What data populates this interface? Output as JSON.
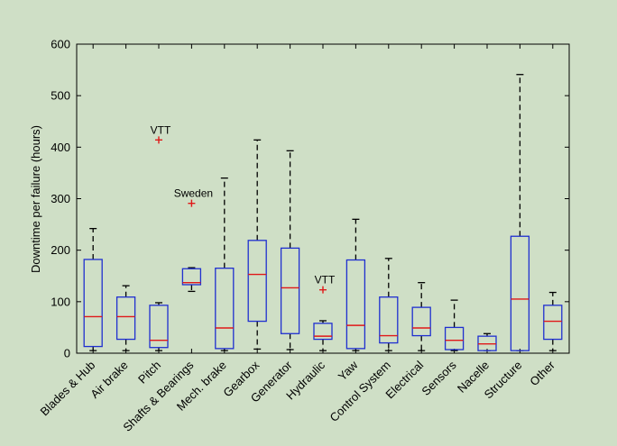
{
  "chart_data": {
    "type": "box",
    "title": "",
    "xlabel": "",
    "ylabel": "Downtime per failure (hours)",
    "ylim": [
      0,
      600
    ],
    "yticks": [
      0,
      100,
      200,
      300,
      400,
      500,
      600
    ],
    "grid": false,
    "categories": [
      "Blades & Hub",
      "Air brake",
      "Pitch",
      "Shafts & Bearings",
      "Mech. brake",
      "Gearbox",
      "Generator",
      "Hydraulic",
      "Yaw",
      "Control System",
      "Electrical",
      "Sensors",
      "Nacelle",
      "Structure",
      "Other"
    ],
    "boxes": [
      {
        "category": "Blades & Hub",
        "min": 5,
        "q1": 13,
        "median": 71,
        "q3": 182,
        "max": 242
      },
      {
        "category": "Air brake",
        "min": 5,
        "q1": 27,
        "median": 71,
        "q3": 109,
        "max": 131
      },
      {
        "category": "Pitch",
        "min": 5,
        "q1": 11,
        "median": 25,
        "q3": 93,
        "max": 98
      },
      {
        "category": "Shafts & Bearings",
        "min": 120,
        "q1": 133,
        "median": 137,
        "q3": 164,
        "max": 166
      },
      {
        "category": "Mech. brake",
        "min": 5,
        "q1": 9,
        "median": 49,
        "q3": 165,
        "max": 340
      },
      {
        "category": "Gearbox",
        "min": 8,
        "q1": 62,
        "median": 153,
        "q3": 219,
        "max": 414
      },
      {
        "category": "Generator",
        "min": 7,
        "q1": 38,
        "median": 127,
        "q3": 204,
        "max": 393
      },
      {
        "category": "Hydraulic",
        "min": 5,
        "q1": 27,
        "median": 33,
        "q3": 58,
        "max": 63
      },
      {
        "category": "Yaw",
        "min": 5,
        "q1": 9,
        "median": 54,
        "q3": 181,
        "max": 260
      },
      {
        "category": "Control System",
        "min": 5,
        "q1": 20,
        "median": 34,
        "q3": 109,
        "max": 184
      },
      {
        "category": "Electrical",
        "min": 5,
        "q1": 34,
        "median": 49,
        "q3": 89,
        "max": 137
      },
      {
        "category": "Sensors",
        "min": 5,
        "q1": 7,
        "median": 25,
        "q3": 50,
        "max": 103
      },
      {
        "category": "Nacelle",
        "min": 5,
        "q1": 5,
        "median": 18,
        "q3": 33,
        "max": 38
      },
      {
        "category": "Structure",
        "min": 5,
        "q1": 5,
        "median": 105,
        "q3": 227,
        "max": 541
      },
      {
        "category": "Other",
        "min": 5,
        "q1": 27,
        "median": 62,
        "q3": 93,
        "max": 118
      }
    ],
    "outliers": [
      {
        "category": "Pitch",
        "value": 414,
        "label": "VTT"
      },
      {
        "category": "Shafts & Bearings",
        "value": 291,
        "label": "Sweden"
      },
      {
        "category": "Hydraulic",
        "value": 123,
        "label": "VTT"
      }
    ],
    "colors": {
      "box": "#1f2fd0",
      "median": "#e01818",
      "whisker": "#000000",
      "outlier": "#e01818",
      "axis": "#000000",
      "plot_background": "#cfdfc6"
    }
  }
}
